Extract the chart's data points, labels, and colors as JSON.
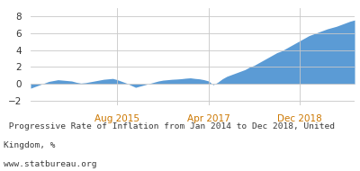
{
  "title_line1": " Progressive Rate of Inflation from Jan 2014 to Dec 2018, United",
  "title_line2": "Kingdom, %",
  "title_line3": "www.statbureau.org",
  "title_color": "#3a3a3a",
  "fill_color": "#5b9bd5",
  "line_color": "#4a90d9",
  "background_color": "#ffffff",
  "grid_color": "#c8c8c8",
  "ylim": [
    -2.5,
    9.0
  ],
  "yticks": [
    -2,
    0,
    2,
    4,
    6,
    8
  ],
  "xtick_labels": [
    "Aug 2015",
    "Apr 2017",
    "Dec 2018"
  ],
  "xtick_color": "#cc7700",
  "values": [
    -0.5,
    -0.3,
    -0.1,
    0.1,
    0.3,
    0.4,
    0.5,
    0.45,
    0.4,
    0.35,
    0.2,
    0.1,
    0.15,
    0.25,
    0.35,
    0.45,
    0.55,
    0.6,
    0.65,
    0.5,
    0.3,
    0.1,
    -0.15,
    -0.4,
    -0.25,
    -0.1,
    0.05,
    0.2,
    0.35,
    0.45,
    0.5,
    0.55,
    0.58,
    0.62,
    0.68,
    0.72,
    0.65,
    0.6,
    0.5,
    0.35,
    -0.1,
    0.2,
    0.6,
    0.9,
    1.1,
    1.3,
    1.5,
    1.7,
    2.0,
    2.2,
    2.5,
    2.8,
    3.1,
    3.4,
    3.7,
    3.9,
    4.2,
    4.5,
    4.8,
    5.1,
    5.4,
    5.7,
    5.9,
    6.1,
    6.3,
    6.5,
    6.65,
    6.8,
    7.0,
    7.2,
    7.4,
    7.55
  ]
}
